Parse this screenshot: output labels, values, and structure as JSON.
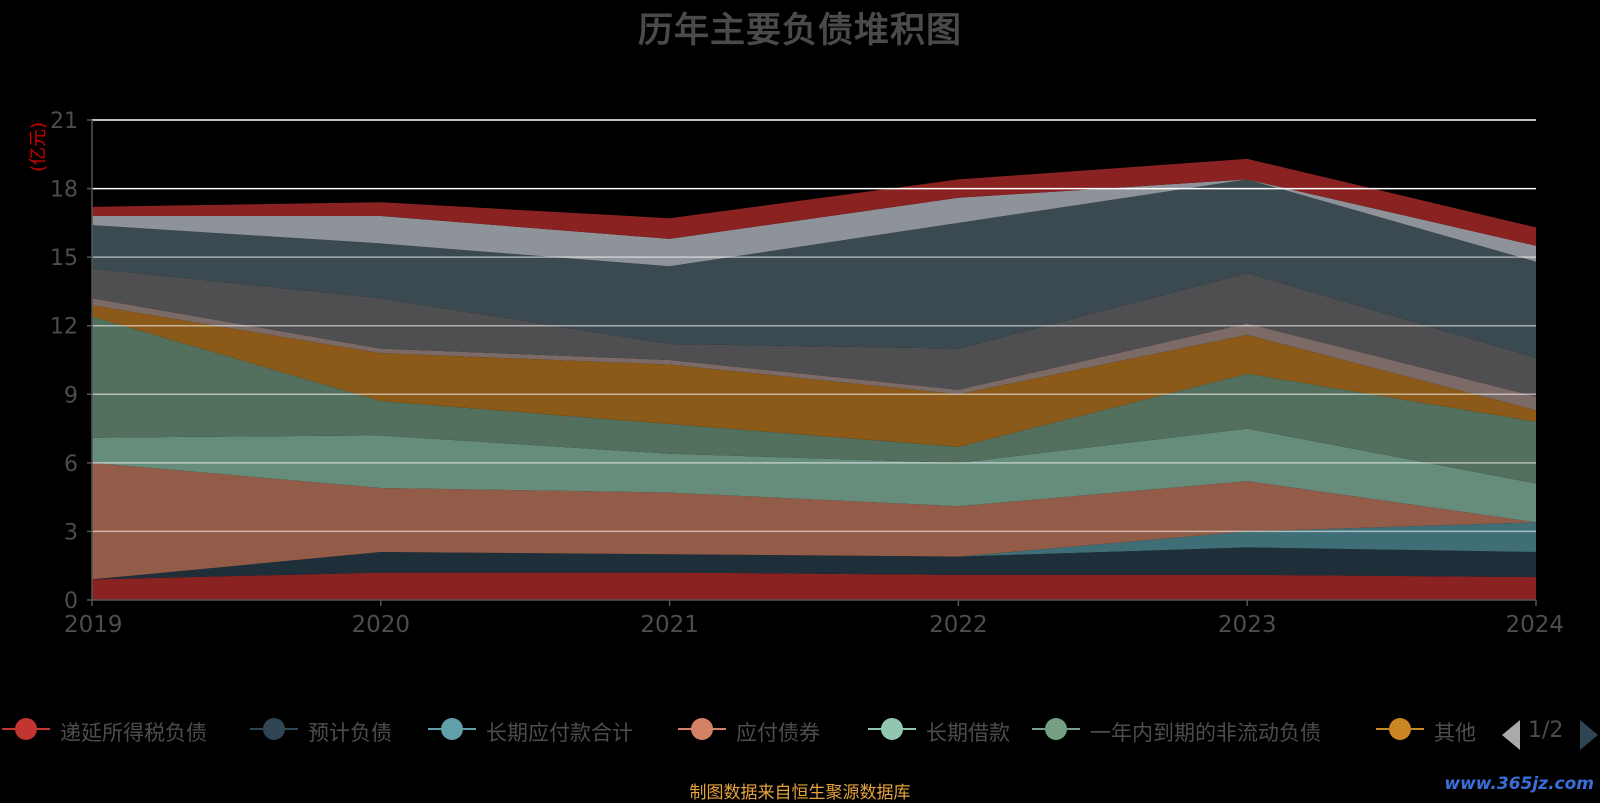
{
  "title": "历年主要负债堆积图",
  "unit_label": "(亿元)",
  "source_text": "制图数据来自恒生聚源数据库",
  "watermark": "www.365jz.com",
  "pager_text": "1/2",
  "legend": [
    {
      "label": "递延所得税负债",
      "color": "#c23531"
    },
    {
      "label": "预计负债",
      "color": "#2f4554"
    },
    {
      "label": "长期应付款合计",
      "color": "#61a0a8"
    },
    {
      "label": "应付债券",
      "color": "#d48265"
    },
    {
      "label": "长期借款",
      "color": "#91c7ae"
    },
    {
      "label": "一年内到期的非流动负债",
      "color": "#749f83"
    },
    {
      "label": "其他",
      "color": "#ca8622"
    }
  ],
  "chart_data": {
    "type": "area",
    "stacked": true,
    "title": "历年主要负债堆积图",
    "ylabel": "(亿元)",
    "x": [
      "2019",
      "2020",
      "2021",
      "2022",
      "2023",
      "2024"
    ],
    "ylim": [
      0,
      21
    ],
    "yticks": [
      0,
      3,
      6,
      9,
      12,
      15,
      18,
      21
    ],
    "grid": true,
    "series": [
      {
        "name": "递延所得税负债",
        "color": "#8b2222",
        "values": [
          0.9,
          1.2,
          1.2,
          1.1,
          1.1,
          1.0
        ]
      },
      {
        "name": "预计负债",
        "color": "#1f2f3a",
        "values": [
          0.0,
          0.9,
          0.8,
          0.8,
          1.2,
          1.1
        ]
      },
      {
        "name": "长期应付款合计",
        "color": "#3f6e76",
        "values": [
          0.0,
          0.0,
          0.0,
          0.0,
          0.7,
          1.3
        ]
      },
      {
        "name": "应付债券",
        "color": "#935c48",
        "values": [
          5.1,
          2.8,
          2.7,
          2.2,
          2.2,
          0.0
        ]
      },
      {
        "name": "长期借款",
        "color": "#668c7b",
        "values": [
          1.1,
          2.3,
          1.7,
          1.9,
          2.3,
          1.7
        ]
      },
      {
        "name": "一年内到期的非流动负债",
        "color": "#52705d",
        "values": [
          5.3,
          1.5,
          1.3,
          0.7,
          2.4,
          2.7
        ]
      },
      {
        "name": "其他",
        "color": "#8b5a18",
        "values": [
          0.5,
          2.1,
          2.6,
          2.3,
          1.7,
          0.5
        ]
      },
      {
        "name": "",
        "color": "#7b6a66",
        "values": [
          0.3,
          0.2,
          0.2,
          0.2,
          0.5,
          0.6
        ]
      },
      {
        "name": "",
        "color": "#4f4f52",
        "values": [
          1.3,
          2.2,
          0.7,
          1.8,
          2.2,
          1.7
        ]
      },
      {
        "name": "",
        "color": "#3b4950",
        "values": [
          1.9,
          2.4,
          3.4,
          5.5,
          4.1,
          4.2
        ]
      },
      {
        "name": "",
        "color": "#8e9399",
        "values": [
          0.4,
          1.2,
          1.2,
          1.1,
          0.0,
          0.7
        ]
      },
      {
        "name": "",
        "color": "#8b2222",
        "values": [
          0.4,
          0.6,
          0.9,
          0.8,
          0.9,
          0.8
        ]
      }
    ]
  }
}
